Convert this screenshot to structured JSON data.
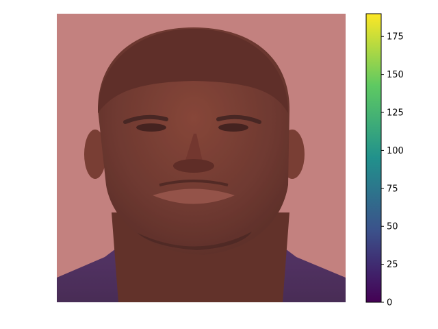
{
  "figure": {
    "image": {
      "subject": "portrait-photo",
      "overlay_colormap": "viridis-like",
      "overlay_tint": "#c08080",
      "overlay_opacity": 0.55
    },
    "colorbar": {
      "min": 0,
      "max": 190,
      "colormap": [
        "#440154",
        "#3b528b",
        "#21918c",
        "#5ec962",
        "#fde725"
      ],
      "ticks": [
        {
          "value": 0,
          "label": "0"
        },
        {
          "value": 25,
          "label": "25"
        },
        {
          "value": 50,
          "label": "50"
        },
        {
          "value": 75,
          "label": "75"
        },
        {
          "value": 100,
          "label": "100"
        },
        {
          "value": 125,
          "label": "125"
        },
        {
          "value": 150,
          "label": "150"
        },
        {
          "value": 175,
          "label": "175"
        }
      ]
    }
  }
}
